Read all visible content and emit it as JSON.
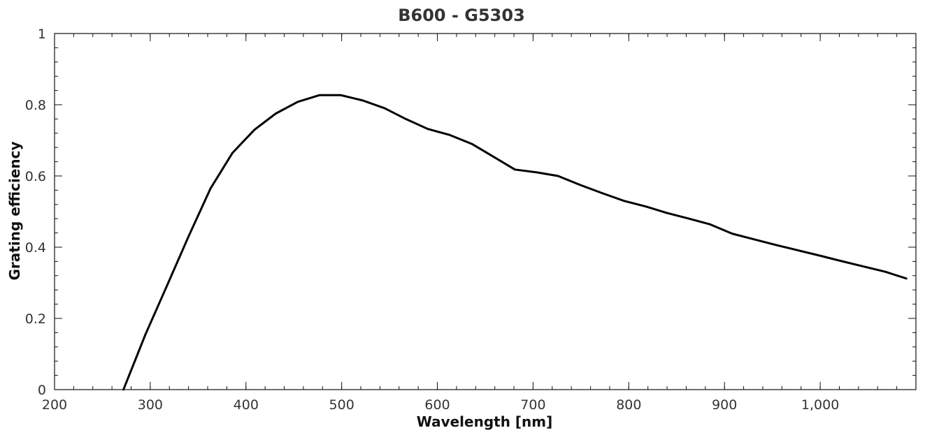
{
  "chart_data": {
    "type": "line",
    "title": "B600 - G5303",
    "xlabel": "Wavelength [nm]",
    "ylabel": "Grating efficiency",
    "xlim": [
      200,
      1100
    ],
    "ylim": [
      0,
      1
    ],
    "x_ticks": [
      200,
      300,
      400,
      500,
      600,
      700,
      800,
      900,
      1000
    ],
    "x_tick_labels": [
      "200",
      "300",
      "400",
      "500",
      "600",
      "700",
      "800",
      "900",
      "1,000"
    ],
    "x_minor_step": 20,
    "y_ticks": [
      0,
      0.2,
      0.4,
      0.6,
      0.8,
      1
    ],
    "y_tick_labels": [
      "0",
      "0.2",
      "0.4",
      "0.6",
      "0.8",
      "1"
    ],
    "y_minor_step": 0.04,
    "grid": false,
    "series": [
      {
        "color": "#000000",
        "x": [
          272,
          295,
          318,
          340,
          363,
          386,
          409,
          431,
          454,
          477,
          499,
          522,
          545,
          567,
          590,
          613,
          636,
          658,
          681,
          704,
          726,
          749,
          772,
          795,
          818,
          840,
          863,
          885,
          908,
          931,
          954,
          977,
          1000,
          1022,
          1045,
          1068,
          1090
        ],
        "y": [
          0.0,
          0.155,
          0.295,
          0.43,
          0.565,
          0.665,
          0.73,
          0.775,
          0.808,
          0.827,
          0.827,
          0.812,
          0.79,
          0.76,
          0.732,
          0.715,
          0.69,
          0.655,
          0.618,
          0.61,
          0.6,
          0.575,
          0.552,
          0.53,
          0.514,
          0.496,
          0.48,
          0.464,
          0.438,
          0.422,
          0.406,
          0.391,
          0.376,
          0.361,
          0.346,
          0.331,
          0.312
        ]
      }
    ]
  }
}
